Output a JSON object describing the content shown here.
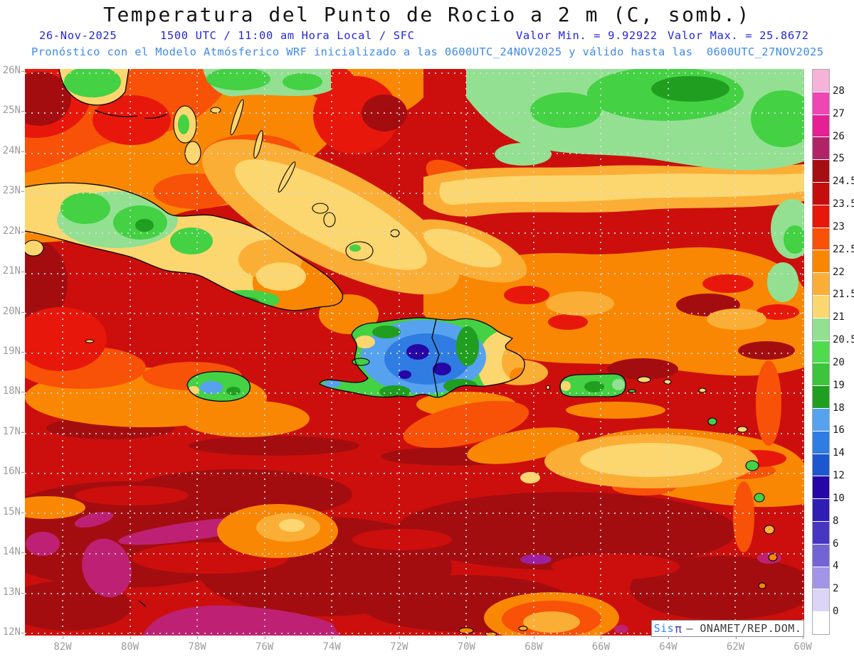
{
  "header": {
    "title": "Temperatura del Punto de Rocio a 2 m (C, somb.)",
    "date": "26-Nov-2025",
    "run_info": "1500 UTC / 11:00 am Hora Local / SFC",
    "valor_min": "Valor Min. = 9.92922",
    "valor_max": "Valor Max. = 25.8672",
    "model_line": "Pronóstico con el Modelo Atmósferico WRF inicializado a las 0600UTC_24NOV2025 y válido hasta las  0600UTC_27NOV2025"
  },
  "axes": {
    "lat_labels": [
      "26N",
      "25N",
      "24N",
      "23N",
      "22N",
      "21N",
      "20N",
      "19N",
      "18N",
      "17N",
      "16N",
      "15N",
      "14N",
      "13N",
      "12N"
    ],
    "lon_labels": [
      "82W",
      "80W",
      "78W",
      "76W",
      "74W",
      "72W",
      "70W",
      "68W",
      "66W",
      "64W",
      "62W",
      "60W"
    ]
  },
  "scale": {
    "labels": [
      "28",
      "27",
      "26",
      "25",
      "24.5",
      "23.5",
      "23",
      "22.5",
      "22",
      "21.5",
      "21",
      "20.5",
      "20",
      "19",
      "18",
      "16",
      "14",
      "12",
      "10",
      "8",
      "6",
      "4",
      "2",
      "0"
    ],
    "colors": [
      "#F6B3D7",
      "#F046B4",
      "#E52095",
      "#B02366",
      "#A50E12",
      "#C50D0D",
      "#E8170B",
      "#F85108",
      "#FA8703",
      "#FBAE35",
      "#FCD66E",
      "#93E093",
      "#4EDB4E",
      "#3CC43C",
      "#209E20",
      "#56A2EF",
      "#2F7DE2",
      "#1D57D0",
      "#2607A5",
      "#2F1DB4",
      "#4736C2",
      "#7264D4",
      "#A295E8",
      "#DCD5F5",
      "#FFFFFF"
    ]
  },
  "watermark": {
    "app": "Sis",
    "pi": "π",
    "org": "– ONAMET/REP.DOM."
  }
}
